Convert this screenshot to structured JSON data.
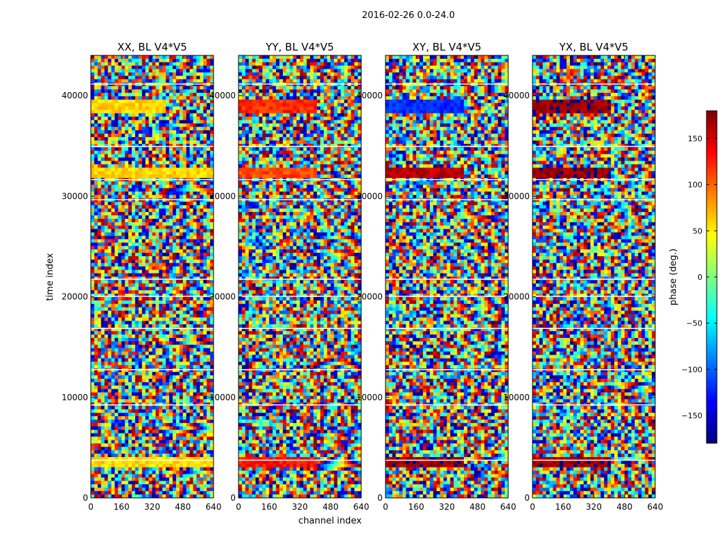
{
  "chart_data": {
    "type": "heatmap",
    "suptitle": "2016-02-26 0.0-24.0",
    "xlabel": "channel index",
    "ylabel": "time index",
    "xlim": [
      0,
      640
    ],
    "ylim": [
      0,
      44000
    ],
    "xticks": [
      0,
      160,
      320,
      480,
      640
    ],
    "yticks": [
      0,
      10000,
      20000,
      30000,
      40000
    ],
    "colorbar": {
      "label": "phase (deg.)",
      "range": [
        -180,
        180
      ],
      "ticks": [
        -150,
        -100,
        -50,
        0,
        50,
        100,
        150
      ],
      "colormap": "jet",
      "colors": [
        "#00007f",
        "#0000ff",
        "#007fff",
        "#00ffff",
        "#7fff7f",
        "#ffff00",
        "#ff7f00",
        "#ff0000",
        "#7f0000"
      ]
    },
    "panels": [
      {
        "title": "XX, BL V4*V5",
        "description": "phase vs channel and time",
        "bands": [
          {
            "t0": 38300,
            "t1": 39700,
            "phase": 60,
            "span": [
              0,
              390
            ]
          },
          {
            "t0": 31900,
            "t1": 32700,
            "phase": 60,
            "span": [
              0,
              640
            ]
          },
          {
            "t0": 3000,
            "t1": 4000,
            "phase": 60,
            "span": [
              0,
              640
            ]
          }
        ]
      },
      {
        "title": "YY, BL V4*V5",
        "description": "phase vs channel and time",
        "bands": [
          {
            "t0": 38300,
            "t1": 39700,
            "phase": 120,
            "span": [
              0,
              400
            ]
          },
          {
            "t0": 31900,
            "t1": 32700,
            "phase": 110,
            "span": [
              0,
              400
            ]
          },
          {
            "t0": 3000,
            "t1": 4000,
            "phase": 130,
            "span": [
              0,
              400
            ]
          }
        ]
      },
      {
        "title": "XY, BL V4*V5",
        "description": "phase vs channel and time",
        "bands": [
          {
            "t0": 38300,
            "t1": 39700,
            "phase": -120,
            "span": [
              0,
              400
            ]
          },
          {
            "t0": 31900,
            "t1": 32700,
            "phase": 160,
            "span": [
              0,
              400
            ]
          },
          {
            "t0": 3000,
            "t1": 4000,
            "phase": 170,
            "span": [
              0,
              400
            ]
          }
        ]
      },
      {
        "title": "YX, BL V4*V5",
        "description": "phase vs channel and time",
        "bands": [
          {
            "t0": 38300,
            "t1": 39700,
            "phase": 170,
            "span": [
              0,
              400
            ]
          },
          {
            "t0": 31900,
            "t1": 32700,
            "phase": 170,
            "span": [
              0,
              400
            ]
          },
          {
            "t0": 3000,
            "t1": 4000,
            "phase": 170,
            "span": [
              0,
              400
            ]
          }
        ]
      }
    ]
  }
}
